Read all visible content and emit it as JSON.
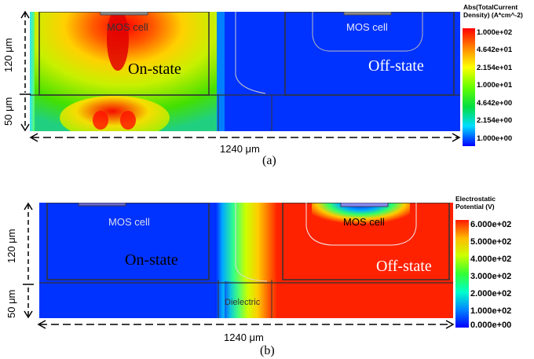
{
  "panel_a": {
    "mos_cell_left": "MOS cell",
    "mos_cell_right": "MOS cell",
    "on_state": "On-state",
    "off_state": "Off-state",
    "dim_height_top": "120 μm",
    "dim_height_bottom": "50 μm",
    "dim_width": "1240 μm",
    "caption": "(a)",
    "legend": {
      "title_line1": "Abs(TotalCurrent",
      "title_line2": "Density) (A*cm^-2)",
      "values": [
        "1.000e+02",
        "4.642e+01",
        "2.154e+01",
        "1.000e+01",
        "4.642e+00",
        "2.154e+00",
        "1.000e+00"
      ],
      "colors": [
        "#ff1a00",
        "#ff9900",
        "#ffff00",
        "#66ff00",
        "#00dd44",
        "#00ddff",
        "#0000ff"
      ]
    }
  },
  "panel_b": {
    "mos_cell_left": "MOS cell",
    "mos_cell_right": "MOS cell",
    "on_state": "On-state",
    "off_state": "Off-state",
    "dielectric": "Dielectric",
    "dim_height_top": "120 μm",
    "dim_height_bottom": "50 μm",
    "dim_width": "1240 μm",
    "caption": "(b)",
    "legend": {
      "title_line1": "Electrostatic",
      "title_line2": "Potential (V)",
      "values": [
        "6.000e+02",
        "5.000e+02",
        "4.000e+02",
        "3.000e+02",
        "2.000e+02",
        "1.000e+02",
        "0.000e+00"
      ],
      "colors": [
        "#ff1a00",
        "#ffcc00",
        "#ccff00",
        "#44ff22",
        "#00ffcc",
        "#0088ff",
        "#0000ff"
      ]
    }
  }
}
